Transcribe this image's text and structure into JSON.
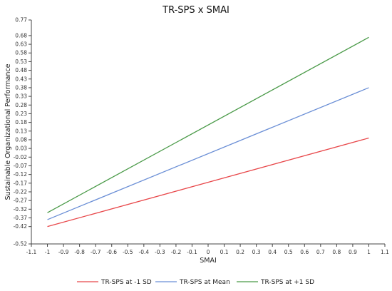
{
  "chart_data": {
    "type": "line",
    "title": "TR-SPS x SMAI",
    "xlabel": "SMAI",
    "ylabel": "Sustainable Organizational Performance",
    "xlim": [
      -1.1,
      1.1
    ],
    "ylim": [
      -0.52,
      0.77
    ],
    "x_ticks": [
      "-1.1",
      "-1",
      "-0.9",
      "-0.8",
      "-0.7",
      "-0.6",
      "-0.5",
      "-0.4",
      "-0.3",
      "-0.2",
      "-0.1",
      "0",
      "0.1",
      "0.2",
      "0.3",
      "0.4",
      "0.5",
      "0.6",
      "0.7",
      "0.8",
      "0.9",
      "1",
      "1.1"
    ],
    "x_tick_values": [
      -1.1,
      -1,
      -0.9,
      -0.8,
      -0.7,
      -0.6,
      -0.5,
      -0.4,
      -0.3,
      -0.2,
      -0.1,
      0,
      0.1,
      0.2,
      0.3,
      0.4,
      0.5,
      0.6,
      0.7,
      0.8,
      0.9,
      1,
      1.1
    ],
    "y_ticks": [
      "0.77",
      "0.68",
      "0.63",
      "0.58",
      "0.53",
      "0.48",
      "0.43",
      "0.38",
      "0.33",
      "0.28",
      "0.23",
      "0.18",
      "0.13",
      "0.08",
      "0.03",
      "-0.02",
      "-0.07",
      "-0.12",
      "-0.17",
      "-0.22",
      "-0.27",
      "-0.32",
      "-0.37",
      "-0.42",
      "-0.52"
    ],
    "y_tick_values": [
      0.77,
      0.68,
      0.63,
      0.58,
      0.53,
      0.48,
      0.43,
      0.38,
      0.33,
      0.28,
      0.23,
      0.18,
      0.13,
      0.08,
      0.03,
      -0.02,
      -0.07,
      -0.12,
      -0.17,
      -0.22,
      -0.27,
      -0.32,
      -0.37,
      -0.42,
      -0.52
    ],
    "grid": false,
    "legend_position": "bottom",
    "series": [
      {
        "name": "TR-SPS at -1 SD",
        "color": "#e8474a",
        "x": [
          -1,
          1
        ],
        "y": [
          -0.42,
          0.09
        ]
      },
      {
        "name": "TR-SPS at Mean",
        "color": "#6b8fd6",
        "x": [
          -1,
          1
        ],
        "y": [
          -0.38,
          0.38
        ]
      },
      {
        "name": "TR-SPS at +1 SD",
        "color": "#4a9a48",
        "x": [
          -1,
          1
        ],
        "y": [
          -0.34,
          0.67
        ]
      }
    ]
  }
}
